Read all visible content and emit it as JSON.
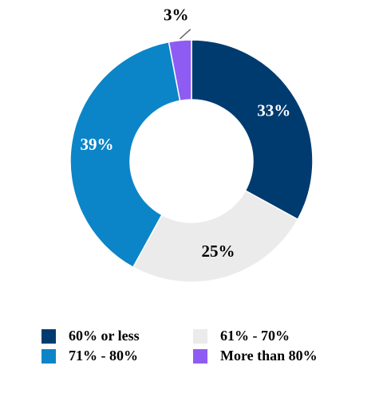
{
  "chart_data": {
    "type": "donut",
    "categories": [
      "60% or less",
      "61% - 70%",
      "71% - 80%",
      "More than 80%"
    ],
    "values": [
      33,
      25,
      39,
      3
    ],
    "value_labels": [
      "33%",
      "25%",
      "39%",
      "3%"
    ],
    "colors": [
      "#003b6f",
      "#ebebeb",
      "#0b85c8",
      "#8e5cf2"
    ],
    "legend": "bottom"
  }
}
